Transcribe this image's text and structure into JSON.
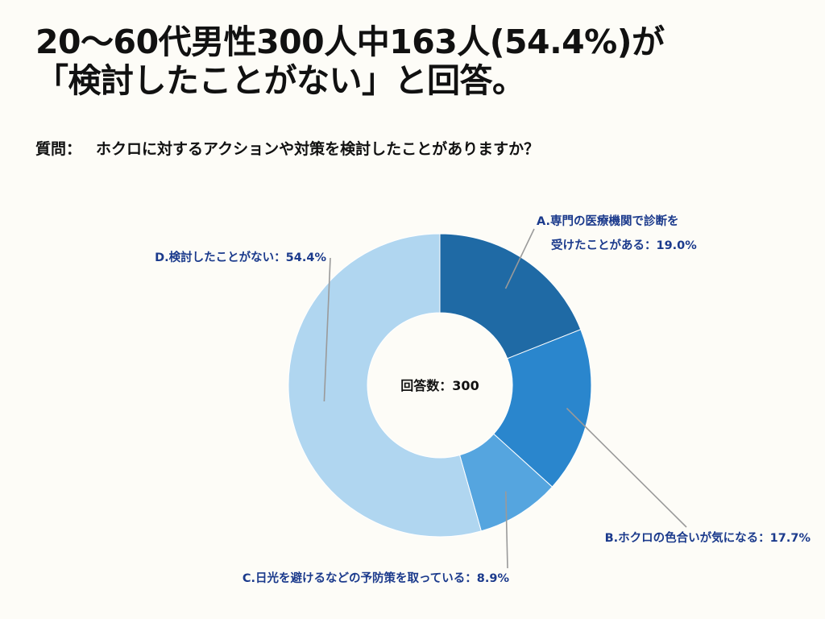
{
  "title": {
    "line1": "20〜60代男性300人中163人(54.4%)が",
    "line2": "「検討したことがない」と回答。"
  },
  "question": {
    "label": "質問：",
    "text": "ホクロに対するアクションや対策を検討したことがありますか？"
  },
  "chart_data": {
    "type": "pie",
    "donut": true,
    "center_label": "回答数：300",
    "total_responses": 300,
    "slices": [
      {
        "key": "A",
        "label_line1": "A.専門の医療機関で診断を",
        "label_line2": "受けたことがある：19.0%",
        "value": 19.0,
        "color": "#1f6aa5"
      },
      {
        "key": "B",
        "label_line1": "B.ホクロの色合いが気になる：17.7%",
        "label_line2": "",
        "value": 17.7,
        "color": "#2a86cd"
      },
      {
        "key": "C",
        "label_line1": "C.日光を避けるなどの予防策を取っている：8.9%",
        "label_line2": "",
        "value": 8.9,
        "color": "#55a5df"
      },
      {
        "key": "D",
        "label_line1": "D.検討したことがない：54.4%",
        "label_line2": "",
        "value": 54.4,
        "color": "#b0d6f0"
      }
    ],
    "start_angle": "top",
    "direction": "clockwise"
  }
}
